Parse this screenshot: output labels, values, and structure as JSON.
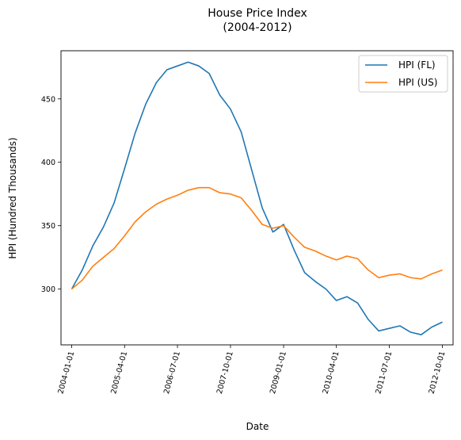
{
  "chart_data": {
    "type": "line",
    "title": "House Price Index",
    "subtitle": "(2004-2012)",
    "xlabel": "Date",
    "ylabel": "HPI (Hundred Thousands)",
    "xlim": [
      "2003-10-01",
      "2013-01-01"
    ],
    "ylim": [
      256,
      488
    ],
    "x_ticks": [
      "2004-01-01",
      "2005-04-01",
      "2006-07-01",
      "2007-10-01",
      "2009-01-01",
      "2010-04-01",
      "2011-07-01",
      "2012-10-01"
    ],
    "y_ticks": [
      300,
      350,
      400,
      450
    ],
    "legend_position": "top-right",
    "grid": false,
    "x": [
      "2004-01-01",
      "2004-04-01",
      "2004-07-01",
      "2004-10-01",
      "2005-01-01",
      "2005-04-01",
      "2005-07-01",
      "2005-10-01",
      "2006-01-01",
      "2006-04-01",
      "2006-07-01",
      "2006-10-01",
      "2007-01-01",
      "2007-04-01",
      "2007-07-01",
      "2007-10-01",
      "2008-01-01",
      "2008-04-01",
      "2008-07-01",
      "2008-10-01",
      "2009-01-01",
      "2009-04-01",
      "2009-07-01",
      "2009-10-01",
      "2010-01-01",
      "2010-04-01",
      "2010-07-01",
      "2010-10-01",
      "2011-01-01",
      "2011-04-01",
      "2011-07-01",
      "2011-10-01",
      "2012-01-01",
      "2012-04-01",
      "2012-07-01",
      "2012-10-01"
    ],
    "series": [
      {
        "name": "HPI (FL)",
        "color": "#1f77b4",
        "values": [
          300,
          315,
          334,
          349,
          368,
          395,
          423,
          446,
          463,
          473,
          476,
          479,
          476,
          470,
          453,
          442,
          424,
          394,
          364,
          345,
          351,
          331,
          313,
          306,
          300,
          291,
          294,
          289,
          276,
          267,
          269,
          271,
          266,
          264,
          270,
          274
        ]
      },
      {
        "name": "HPI (US)",
        "color": "#ff7f0e",
        "values": [
          300,
          307,
          318,
          325,
          332,
          342,
          353,
          361,
          367,
          371,
          374,
          378,
          380,
          380,
          376,
          375,
          372,
          362,
          351,
          348,
          350,
          341,
          333,
          330,
          326,
          323,
          326,
          324,
          315,
          309,
          311,
          312,
          309,
          308,
          312,
          315
        ]
      }
    ]
  }
}
